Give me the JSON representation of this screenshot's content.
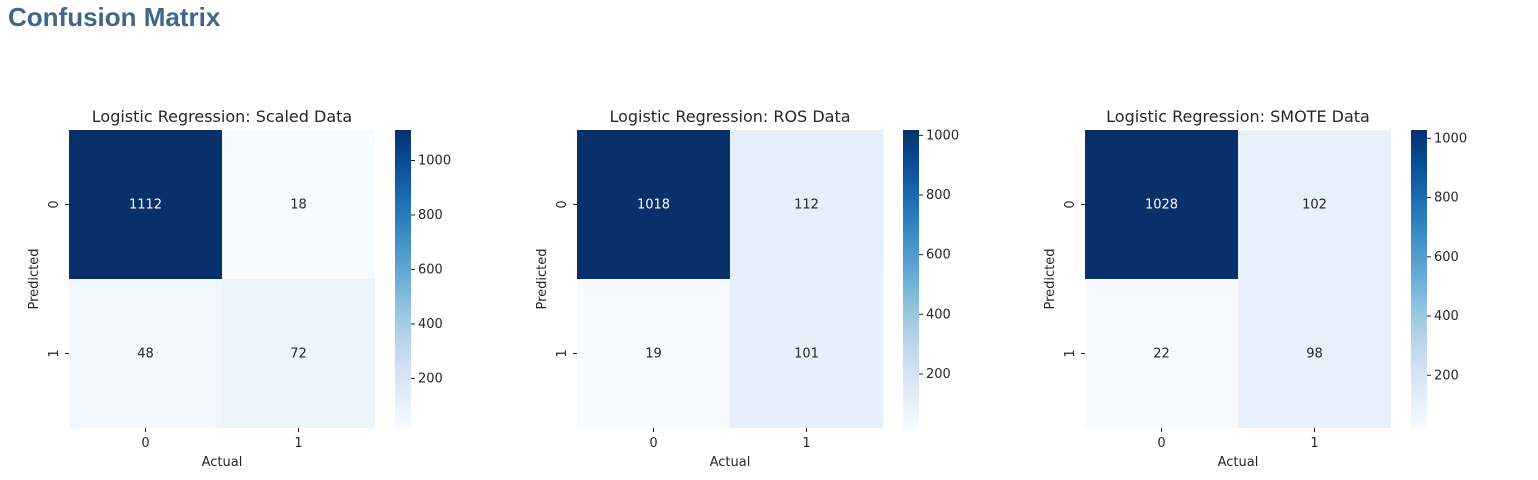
{
  "page": {
    "title": "Confusion Matrix"
  },
  "colors": {
    "low": "#f7fbff",
    "high": "#08306b",
    "title": "#3f6788"
  },
  "chart_data": [
    {
      "type": "heatmap",
      "title": "Logistic Regression: Scaled Data",
      "xlabel": "Actual",
      "ylabel": "Predicted",
      "x_categories": [
        "0",
        "1"
      ],
      "y_categories": [
        "0",
        "1"
      ],
      "values": [
        [
          1112,
          18
        ],
        [
          48,
          72
        ]
      ],
      "colorbar": {
        "min": 18,
        "max": 1112,
        "ticks": [
          200,
          400,
          600,
          800,
          1000
        ],
        "colormap": "Blues"
      }
    },
    {
      "type": "heatmap",
      "title": "Logistic Regression: ROS Data",
      "xlabel": "Actual",
      "ylabel": "Predicted",
      "x_categories": [
        "0",
        "1"
      ],
      "y_categories": [
        "0",
        "1"
      ],
      "values": [
        [
          1018,
          112
        ],
        [
          19,
          101
        ]
      ],
      "colorbar": {
        "min": 19,
        "max": 1018,
        "ticks": [
          200,
          400,
          600,
          800,
          1000
        ],
        "colormap": "Blues"
      }
    },
    {
      "type": "heatmap",
      "title": "Logistic Regression: SMOTE Data",
      "xlabel": "Actual",
      "ylabel": "Predicted",
      "x_categories": [
        "0",
        "1"
      ],
      "y_categories": [
        "0",
        "1"
      ],
      "values": [
        [
          1028,
          102
        ],
        [
          22,
          98
        ]
      ],
      "colorbar": {
        "min": 22,
        "max": 1028,
        "ticks": [
          200,
          400,
          600,
          800,
          1000
        ],
        "colormap": "Blues"
      }
    }
  ]
}
